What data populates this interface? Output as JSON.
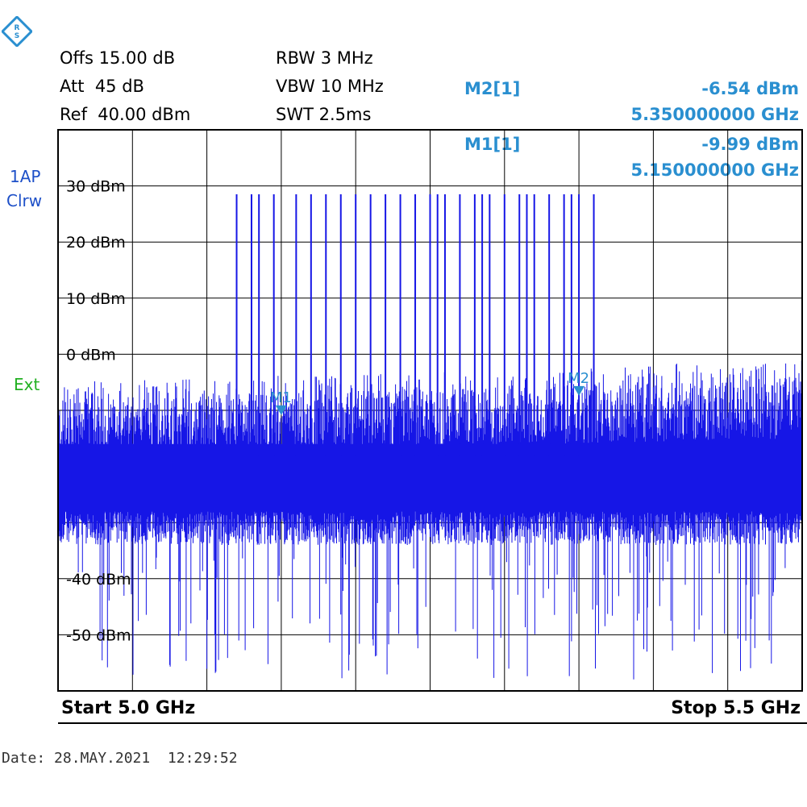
{
  "header": {
    "offs": "Offs 15.00 dB",
    "att": "Att  45 dB",
    "ref": "Ref  40.00 dBm",
    "rbw": "RBW 3 MHz",
    "vbw": "VBW 10 MHz",
    "swt": "SWT 2.5ms"
  },
  "markers": [
    {
      "id": "M2[1]",
      "level": "-6.54 dBm",
      "freq": "5.350000000 GHz"
    },
    {
      "id": "M1[1]",
      "level": "-9.99 dBm",
      "freq": "5.150000000 GHz"
    }
  ],
  "side": {
    "trace_mode": "1AP",
    "trace_detector": "Clrw",
    "trigger": "Ext"
  },
  "footer": {
    "start": "Start 5.0 GHz",
    "stop": "Stop 5.5 GHz",
    "date": "Date: 28.MAY.2021  12:29:52"
  },
  "colors": {
    "trace": "#1616e6",
    "marker": "#2a8fd0",
    "grid": "#000000"
  },
  "chart_data": {
    "type": "line",
    "x_unit": "GHz",
    "y_unit": "dBm",
    "xlim": [
      5.0,
      5.5
    ],
    "ylim": [
      -60,
      40
    ],
    "y_tick_labels": [
      "30 dBm",
      "20 dBm",
      "10 dBm",
      "0 dBm",
      "-40 dBm",
      "-50 dBm"
    ],
    "y_tick_values": [
      30,
      20,
      10,
      0,
      -40,
      -50
    ],
    "grid": true,
    "noise_floor": {
      "upper_envelope_start": -8,
      "upper_envelope_end": -4,
      "dense_top": -18,
      "dense_bottom": -28,
      "lower_spikes_min": -58
    },
    "spikes_x": [
      5.12,
      5.13,
      5.135,
      5.145,
      5.16,
      5.17,
      5.18,
      5.19,
      5.2,
      5.21,
      5.22,
      5.23,
      5.24,
      5.25,
      5.255,
      5.26,
      5.27,
      5.28,
      5.285,
      5.29,
      5.3,
      5.31,
      5.315,
      5.32,
      5.33,
      5.34,
      5.345,
      5.35,
      5.36
    ],
    "spike_peak": 28.5,
    "markers": [
      {
        "name": "M1",
        "x": 5.15,
        "y": -9.99
      },
      {
        "name": "M2",
        "x": 5.35,
        "y": -6.54
      }
    ]
  }
}
